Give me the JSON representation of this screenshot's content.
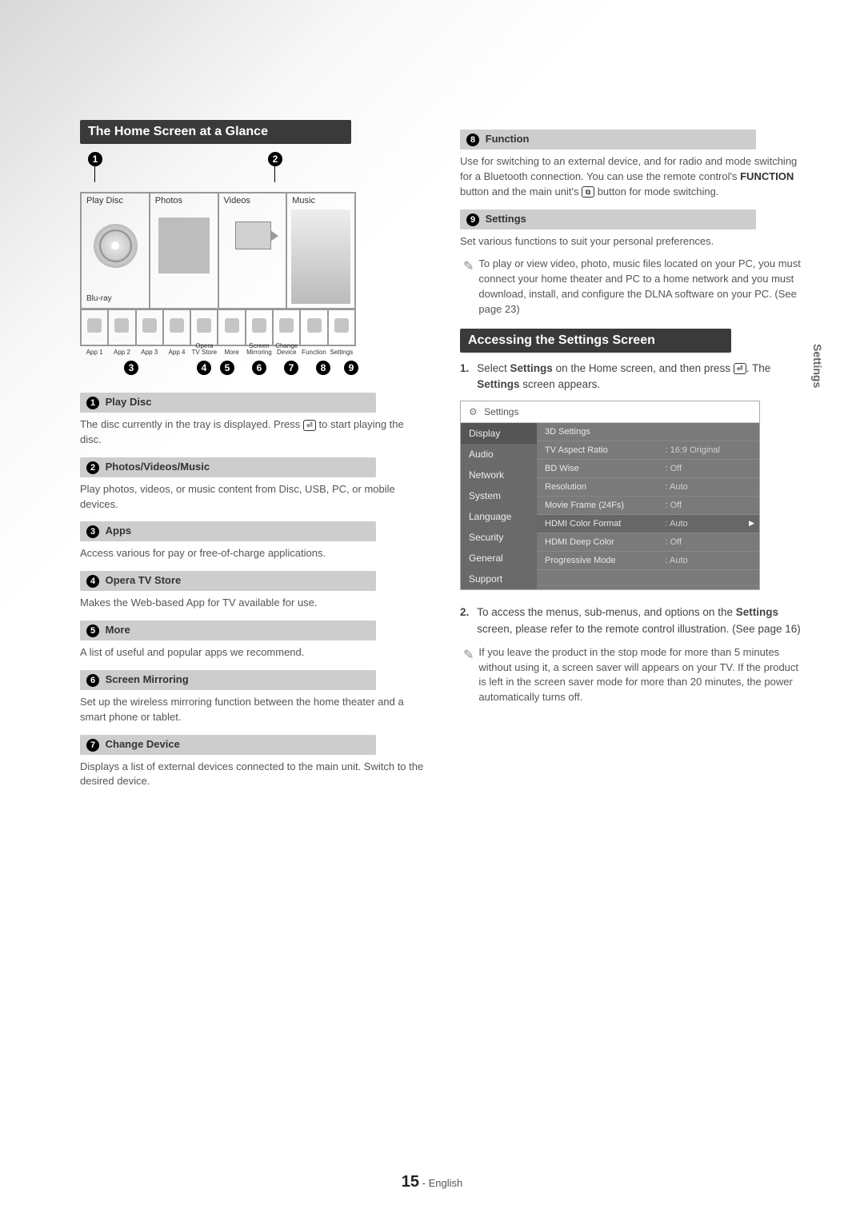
{
  "side_tab": "Settings",
  "section1": {
    "title": "The Home Screen at a Glance",
    "home_screen": {
      "cells": [
        "Play Disc",
        "Photos",
        "Videos",
        "Music"
      ],
      "bluray": "Blu-ray",
      "apps": [
        "App 1",
        "App 2",
        "App 3",
        "App 4",
        "Opera TV Store",
        "More",
        "Screen Mirroring",
        "Change Device",
        "Function",
        "Settings"
      ]
    },
    "callouts": [
      {
        "n": "1",
        "label": "Play Disc",
        "desc": "The disc currently in the tray is displayed. Press __BTN__ to start playing the disc."
      },
      {
        "n": "2",
        "label": "Photos/Videos/Music",
        "desc": "Play photos, videos, or music content from Disc, USB, PC, or mobile devices."
      },
      {
        "n": "3",
        "label": "Apps",
        "desc": "Access various for pay or free-of-charge applications."
      },
      {
        "n": "4",
        "label": "Opera TV Store",
        "desc": "Makes the Web-based App for TV available for use."
      },
      {
        "n": "5",
        "label": "More",
        "desc": "A list of useful and popular apps we recommend."
      },
      {
        "n": "6",
        "label": "Screen Mirroring",
        "desc": "Set up the wireless mirroring function between the home theater and a smart phone or tablet."
      },
      {
        "n": "7",
        "label": "Change Device",
        "desc": "Displays a list of external devices connected to the main unit. Switch to the desired device."
      }
    ]
  },
  "section2_more": [
    {
      "n": "8",
      "label": "Function",
      "desc": "Use for switching to an external device, and for radio and mode switching for a Bluetooth connection. You can use the remote control's <b>FUNCTION</b> button and the main unit's __BTN2__ button for mode switching."
    },
    {
      "n": "9",
      "label": "Settings",
      "desc": "Set various functions to suit your personal preferences."
    }
  ],
  "note1": "To play or view video, photo, music files located on your PC, you must connect your home theater and PC to a home network and you must download, install, and configure the DLNA software on your PC. (See page 23)",
  "section3": {
    "title": "Accessing the Settings Screen",
    "step1": "Select <b>Settings</b> on the Home screen, and then press __BTN__. The <b>Settings</b> screen appears.",
    "panel": {
      "title": "Settings",
      "side": [
        "Display",
        "Audio",
        "Network",
        "System",
        "Language",
        "Security",
        "General",
        "Support"
      ],
      "rows": [
        {
          "k": "3D Settings",
          "v": ""
        },
        {
          "k": "TV Aspect Ratio",
          "v": ": 16:9 Original"
        },
        {
          "k": "BD Wise",
          "v": ": Off"
        },
        {
          "k": "Resolution",
          "v": ": Auto"
        },
        {
          "k": "Movie Frame (24Fs)",
          "v": ": Off"
        },
        {
          "k": "HDMI Color Format",
          "v": ": Auto",
          "hi": true
        },
        {
          "k": "HDMI Deep Color",
          "v": ": Off"
        },
        {
          "k": "Progressive Mode",
          "v": ": Auto"
        }
      ]
    },
    "step2": "To access the menus, sub-menus, and options on the <b>Settings</b> screen, please refer to the remote control illustration. (See page 16)",
    "note2": "If you leave the product in the stop mode for more than 5 minutes without using it, a screen saver will appears on your TV. If the product is left in the screen saver mode for more than 20 minutes, the power automatically turns off."
  },
  "footer": {
    "page": "15",
    "lang": "- English"
  }
}
